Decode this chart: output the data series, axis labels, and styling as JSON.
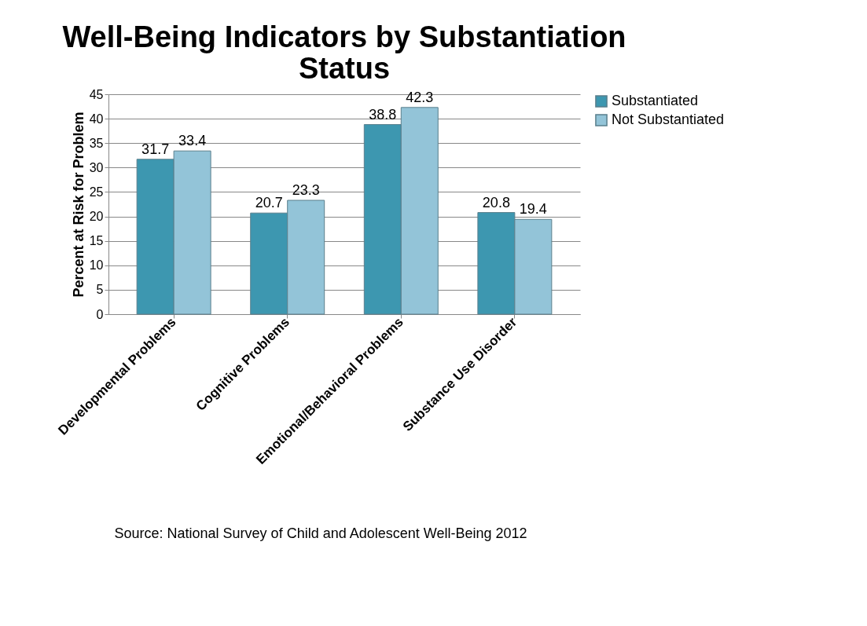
{
  "chart_data": {
    "type": "bar",
    "title": "Well-Being Indicators by Substantiation Status",
    "ylabel": "Percent at Risk for Problem",
    "categories": [
      "Developmental Problems",
      "Cognitive Problems",
      "Emotional/Behavioral Problems",
      "Substance Use Disorder"
    ],
    "series": [
      {
        "name": "Substantiated",
        "color": "#3d97b0",
        "values": [
          31.7,
          20.7,
          38.8,
          20.8
        ]
      },
      {
        "name": "Not Substantiated",
        "color": "#93c4d8",
        "values": [
          33.4,
          23.3,
          42.3,
          19.4
        ]
      }
    ],
    "ylim": [
      0,
      45
    ],
    "yticks": [
      0,
      5,
      10,
      15,
      20,
      25,
      30,
      35,
      40,
      45
    ],
    "grid": "y",
    "legend": "right",
    "data_labels": true,
    "annotations": [
      "Source: National Survey of Child and Adolescent Well-Being 2012"
    ]
  }
}
